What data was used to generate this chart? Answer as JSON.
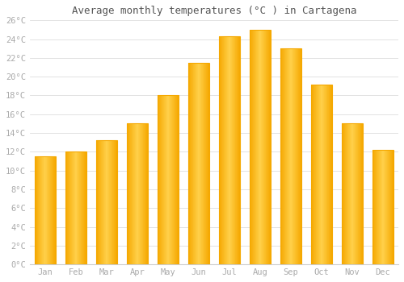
{
  "title": "Average monthly temperatures (°C ) in Cartagena",
  "months": [
    "Jan",
    "Feb",
    "Mar",
    "Apr",
    "May",
    "Jun",
    "Jul",
    "Aug",
    "Sep",
    "Oct",
    "Nov",
    "Dec"
  ],
  "values": [
    11.5,
    12.0,
    13.2,
    15.0,
    18.0,
    21.5,
    24.3,
    25.0,
    23.0,
    19.2,
    15.0,
    12.2
  ],
  "bar_color_center": "#FFD04A",
  "bar_color_edge": "#F5A800",
  "background_color": "#FFFFFF",
  "grid_color": "#DDDDDD",
  "tick_label_color": "#AAAAAA",
  "title_color": "#555555",
  "ylim": [
    0,
    26
  ],
  "ytick_step": 2,
  "bar_width": 0.7,
  "figsize": [
    5.0,
    3.5
  ],
  "dpi": 100
}
